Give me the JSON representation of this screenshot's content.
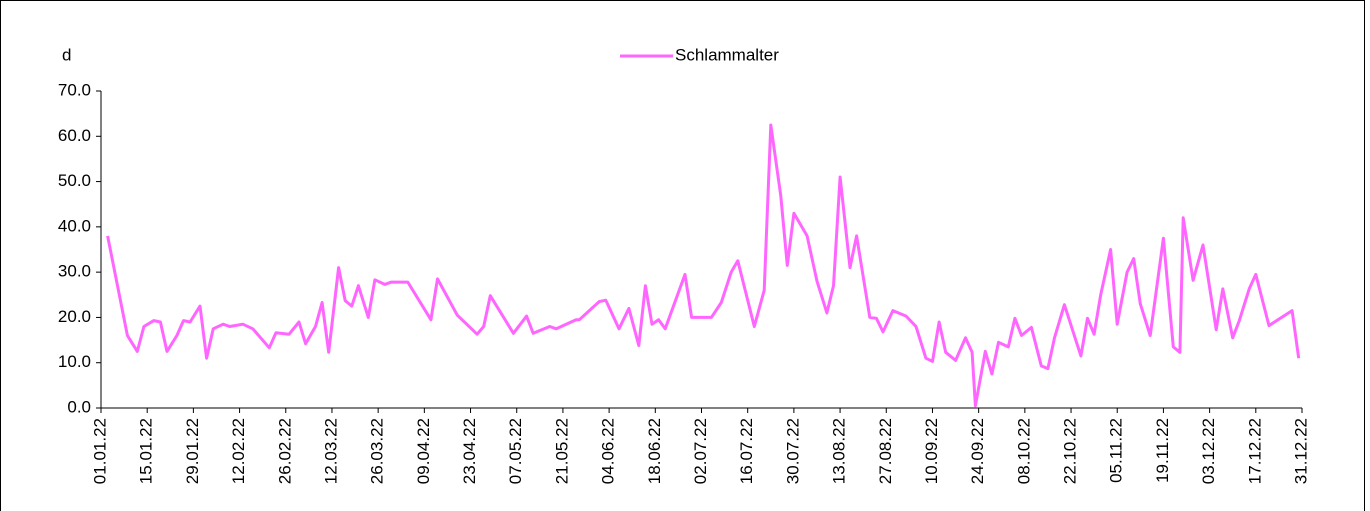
{
  "chart_data": {
    "type": "line",
    "y_label": "d",
    "x": [
      "2022-01-03",
      "2022-01-09",
      "2022-01-12",
      "2022-01-14",
      "2022-01-17",
      "2022-01-19",
      "2022-01-21",
      "2022-01-24",
      "2022-01-26",
      "2022-01-28",
      "2022-01-31",
      "2022-02-02",
      "2022-02-04",
      "2022-02-07",
      "2022-02-09",
      "2022-02-13",
      "2022-02-16",
      "2022-02-21",
      "2022-02-23",
      "2022-02-27",
      "2022-03-02",
      "2022-03-04",
      "2022-03-07",
      "2022-03-09",
      "2022-03-11",
      "2022-03-14",
      "2022-03-16",
      "2022-03-18",
      "2022-03-20",
      "2022-03-23",
      "2022-03-25",
      "2022-03-28",
      "2022-03-30",
      "2022-04-04",
      "2022-04-11",
      "2022-04-13",
      "2022-04-19",
      "2022-04-25",
      "2022-04-27",
      "2022-04-29",
      "2022-05-06",
      "2022-05-10",
      "2022-05-12",
      "2022-05-17",
      "2022-05-19",
      "2022-05-25",
      "2022-05-26",
      "2022-06-01",
      "2022-06-03",
      "2022-06-07",
      "2022-06-10",
      "2022-06-13",
      "2022-06-15",
      "2022-06-17",
      "2022-06-19",
      "2022-06-21",
      "2022-06-27",
      "2022-06-29",
      "2022-07-05",
      "2022-07-08",
      "2022-07-11",
      "2022-07-13",
      "2022-07-18",
      "2022-07-21",
      "2022-07-23",
      "2022-07-26",
      "2022-07-28",
      "2022-07-30",
      "2022-08-03",
      "2022-08-06",
      "2022-08-09",
      "2022-08-11",
      "2022-08-13",
      "2022-08-16",
      "2022-08-18",
      "2022-08-22",
      "2022-08-24",
      "2022-08-26",
      "2022-08-29",
      "2022-09-02",
      "2022-09-05",
      "2022-09-08",
      "2022-09-10",
      "2022-09-12",
      "2022-09-14",
      "2022-09-17",
      "2022-09-20",
      "2022-09-22",
      "2022-09-23",
      "2022-09-26",
      "2022-09-28",
      "2022-09-30",
      "2022-10-03",
      "2022-10-05",
      "2022-10-07",
      "2022-10-10",
      "2022-10-13",
      "2022-10-15",
      "2022-10-17",
      "2022-10-20",
      "2022-10-25",
      "2022-10-27",
      "2022-10-29",
      "2022-10-31",
      "2022-11-03",
      "2022-11-05",
      "2022-11-08",
      "2022-11-10",
      "2022-11-12",
      "2022-11-15",
      "2022-11-19",
      "2022-11-22",
      "2022-11-24",
      "2022-11-25",
      "2022-11-28",
      "2022-12-01",
      "2022-12-05",
      "2022-12-07",
      "2022-12-10",
      "2022-12-12",
      "2022-12-15",
      "2022-12-17",
      "2022-12-21",
      "2022-12-28",
      "2022-12-30"
    ],
    "series": [
      {
        "name": "Schlammalter",
        "color": "#ff66ff",
        "values": [
          38,
          16,
          12.5,
          18,
          19.3,
          19,
          12.5,
          16,
          19.3,
          19,
          22.5,
          11,
          17.5,
          18.5,
          18,
          18.5,
          17.5,
          13.3,
          16.6,
          16.3,
          19,
          14.2,
          18,
          23.3,
          12.3,
          31,
          23.7,
          22.5,
          27,
          20,
          28.3,
          27.3,
          27.8,
          27.8,
          19.5,
          28.5,
          20.5,
          16.3,
          18,
          24.8,
          16.5,
          20.3,
          16.5,
          18,
          17.5,
          19.5,
          19.5,
          23.5,
          23.8,
          17.5,
          22,
          13.8,
          27,
          18.5,
          19.5,
          17.5,
          29.5,
          20,
          20,
          23.3,
          30,
          32.5,
          18,
          26,
          62.5,
          47,
          31.5,
          43,
          38,
          28,
          21,
          27,
          51,
          31,
          38,
          20,
          19.8,
          16.8,
          21.5,
          20.3,
          18,
          11,
          10.3,
          19,
          12.3,
          10.5,
          15.5,
          12.3,
          0.5,
          12.5,
          7.5,
          14.5,
          13.5,
          19.8,
          16,
          17.8,
          9.3,
          8.7,
          15.5,
          22.8,
          11.5,
          19.8,
          16.3,
          25,
          35,
          18.5,
          30,
          33,
          23,
          16,
          37.5,
          13.5,
          12.3,
          42,
          28.2,
          36,
          17.3,
          26.3,
          15.5,
          19.3,
          26.3,
          29.5,
          18.2,
          21.5,
          11
        ]
      }
    ],
    "xlim": [
      "2022-01-01",
      "2022-12-31"
    ],
    "xticks": [
      {
        "value": "2022-01-01",
        "label": "01.01.22"
      },
      {
        "value": "2022-01-15",
        "label": "15.01.22"
      },
      {
        "value": "2022-01-29",
        "label": "29.01.22"
      },
      {
        "value": "2022-02-12",
        "label": "12.02.22"
      },
      {
        "value": "2022-02-26",
        "label": "26.02.22"
      },
      {
        "value": "2022-03-12",
        "label": "12.03.22"
      },
      {
        "value": "2022-03-26",
        "label": "26.03.22"
      },
      {
        "value": "2022-04-09",
        "label": "09.04.22"
      },
      {
        "value": "2022-04-23",
        "label": "23.04.22"
      },
      {
        "value": "2022-05-07",
        "label": "07.05.22"
      },
      {
        "value": "2022-05-21",
        "label": "21.05.22"
      },
      {
        "value": "2022-06-04",
        "label": "04.06.22"
      },
      {
        "value": "2022-06-18",
        "label": "18.06.22"
      },
      {
        "value": "2022-07-02",
        "label": "02.07.22"
      },
      {
        "value": "2022-07-16",
        "label": "16.07.22"
      },
      {
        "value": "2022-07-30",
        "label": "30.07.22"
      },
      {
        "value": "2022-08-13",
        "label": "13.08.22"
      },
      {
        "value": "2022-08-27",
        "label": "27.08.22"
      },
      {
        "value": "2022-09-10",
        "label": "10.09.22"
      },
      {
        "value": "2022-09-24",
        "label": "24.09.22"
      },
      {
        "value": "2022-10-08",
        "label": "08.10.22"
      },
      {
        "value": "2022-10-22",
        "label": "22.10.22"
      },
      {
        "value": "2022-11-05",
        "label": "05.11.22"
      },
      {
        "value": "2022-11-19",
        "label": "19.11.22"
      },
      {
        "value": "2022-12-03",
        "label": "03.12.22"
      },
      {
        "value": "2022-12-17",
        "label": "17.12.22"
      },
      {
        "value": "2022-12-31",
        "label": "31.12.22"
      }
    ],
    "ylim": [
      0,
      70
    ],
    "yticks": [
      {
        "value": 0,
        "label": "0.0"
      },
      {
        "value": 10,
        "label": "10.0"
      },
      {
        "value": 20,
        "label": "20.0"
      },
      {
        "value": 30,
        "label": "30.0"
      },
      {
        "value": 40,
        "label": "40.0"
      },
      {
        "value": 50,
        "label": "50.0"
      },
      {
        "value": 60,
        "label": "60.0"
      },
      {
        "value": 70,
        "label": "70.0"
      }
    ],
    "legend": "top"
  }
}
